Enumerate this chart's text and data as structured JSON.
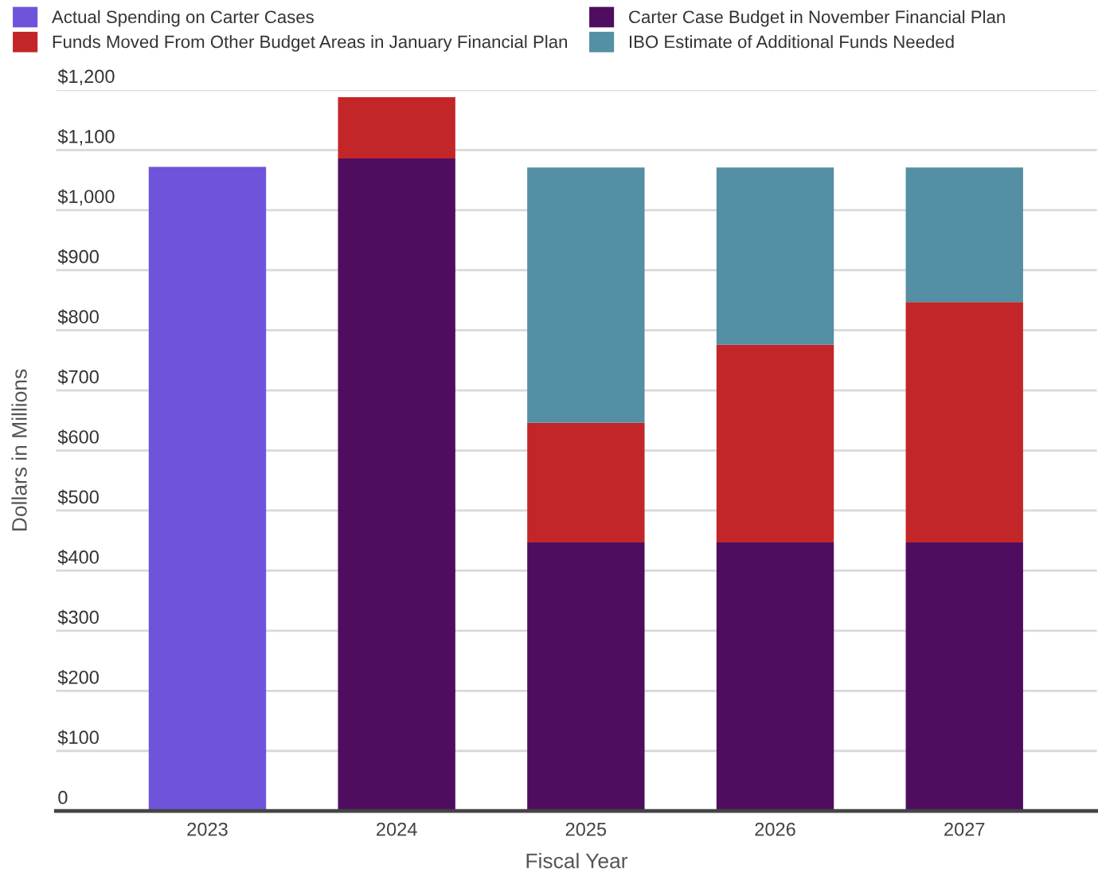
{
  "chart_data": {
    "type": "bar",
    "stacked": true,
    "xlabel": "Fiscal Year",
    "ylabel": "Dollars in Millions",
    "categories": [
      "2023",
      "2024",
      "2025",
      "2026",
      "2027"
    ],
    "series": [
      {
        "name": "Actual Spending on Carter Cases",
        "color": "#6f53db",
        "values": [
          1072,
          null,
          null,
          null,
          null
        ]
      },
      {
        "name": "Carter Case Budget in November Financial Plan",
        "color": "#4f0d5f",
        "values": [
          null,
          1086,
          447,
          447,
          447
        ]
      },
      {
        "name": "Funds Moved From Other Budget Areas in January Financial Plan",
        "color": "#c32628",
        "values": [
          null,
          102,
          199,
          329,
          400
        ]
      },
      {
        "name": "IBO Estimate of Additional Funds Needed",
        "color": "#548fa3",
        "values": [
          null,
          null,
          425,
          295,
          224
        ]
      }
    ],
    "ylim": [
      0,
      1200
    ],
    "yticks": [
      0,
      {
        "value": 100,
        "label": "$100"
      },
      {
        "value": 200,
        "label": "$200"
      },
      {
        "value": 300,
        "label": "$300"
      },
      {
        "value": 400,
        "label": "$400"
      },
      {
        "value": 500,
        "label": "$500"
      },
      {
        "value": 600,
        "label": "$600"
      },
      {
        "value": 700,
        "label": "$700"
      },
      {
        "value": 800,
        "label": "$800"
      },
      {
        "value": 900,
        "label": "$900"
      },
      {
        "value": 1000,
        "label": "$1,000"
      },
      {
        "value": 1100,
        "label": "$1,100"
      },
      {
        "value": 1200,
        "label": "$1,200"
      }
    ],
    "grid": "y",
    "legend": "top"
  }
}
